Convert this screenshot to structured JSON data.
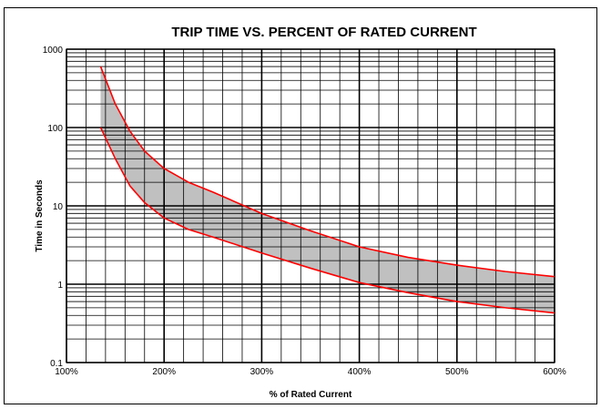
{
  "chart_data": {
    "type": "area",
    "title": "TRIP TIME VS. PERCENT OF RATED CURRENT",
    "xlabel": "% of Rated Current",
    "ylabel": "Time in Seconds",
    "x_scale": "linear",
    "y_scale": "log",
    "xlim": [
      100,
      600
    ],
    "ylim": [
      0.1,
      1000
    ],
    "x_ticks": [
      {
        "value": 100,
        "label": "100%"
      },
      {
        "value": 200,
        "label": "200%"
      },
      {
        "value": 300,
        "label": "300%"
      },
      {
        "value": 400,
        "label": "400%"
      },
      {
        "value": 500,
        "label": "500%"
      },
      {
        "value": 600,
        "label": "600%"
      }
    ],
    "y_ticks": [
      {
        "value": 0.1,
        "label": "0.1"
      },
      {
        "value": 1,
        "label": "1"
      },
      {
        "value": 10,
        "label": "10"
      },
      {
        "value": 100,
        "label": "100"
      },
      {
        "value": 1000,
        "label": "1000"
      }
    ],
    "grid": true,
    "fill_color": "#c0c0c0",
    "line_color": "#ff0000",
    "series": [
      {
        "x": [
          135,
          150,
          165,
          180,
          200,
          225,
          250,
          300,
          350,
          400,
          450,
          500,
          550,
          600
        ],
        "y": [
          600,
          200,
          90,
          50,
          30,
          20,
          15,
          8,
          4.8,
          3.0,
          2.2,
          1.75,
          1.45,
          1.25
        ]
      },
      {
        "x": [
          135,
          150,
          165,
          180,
          200,
          225,
          250,
          300,
          350,
          400,
          450,
          500,
          550,
          600
        ],
        "y": [
          100,
          40,
          18,
          11,
          7,
          5,
          4,
          2.5,
          1.6,
          1.05,
          0.78,
          0.6,
          0.5,
          0.43
        ]
      }
    ]
  }
}
